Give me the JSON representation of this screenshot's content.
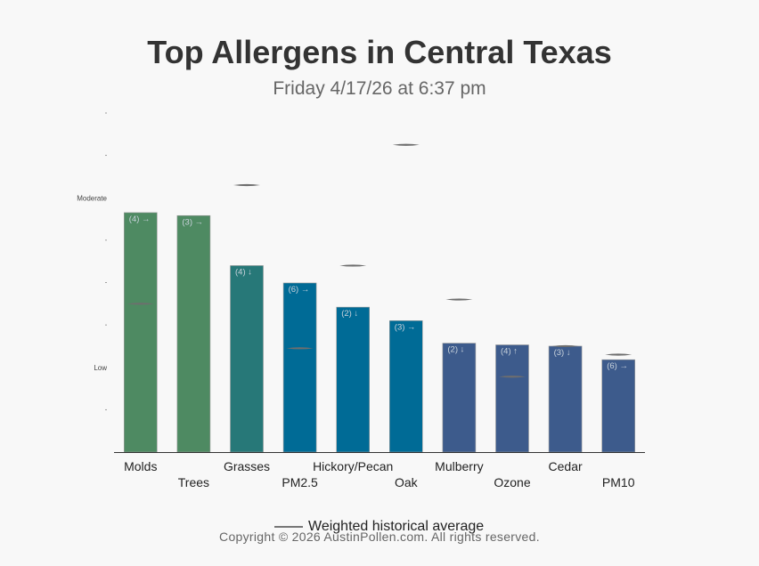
{
  "header": {
    "title": "Top Allergens in Central Texas",
    "subtitle": "Friday 4/17/26 at 6:37 pm"
  },
  "legend": {
    "label": "Weighted historical average"
  },
  "footer": {
    "copyright": "Copyright © 2026 AustinPollen.com.  All rights reserved."
  },
  "chart_data": {
    "type": "bar",
    "categories": [
      "Molds",
      "Trees",
      "Grasses",
      "PM2.5",
      "Hickory/Pecan",
      "Oak",
      "Mulberry",
      "Ozone",
      "Cedar",
      "PM10"
    ],
    "values": [
      5.65,
      5.58,
      4.4,
      3.99,
      3.42,
      3.1,
      2.57,
      2.53,
      2.5,
      2.18
    ],
    "historical_average": [
      3.5,
      null,
      6.3,
      2.45,
      4.4,
      7.25,
      3.6,
      1.78,
      2.5,
      2.3
    ],
    "annotations": [
      "(4) →",
      "(3) →",
      "(4) ↓",
      "(6) →",
      "(2) ↓",
      "(3) →",
      "(2) ↓",
      "(4) ↑",
      "(3) ↓",
      "(6) →"
    ],
    "colors": [
      "#4e8a62",
      "#4e8a62",
      "#277878",
      "#006b96",
      "#006b96",
      "#006b96",
      "#3d5b8c",
      "#3d5b8c",
      "#3d5b8c",
      "#3d5b8c"
    ],
    "ytick_labels": {
      "2": "Low",
      "6": "Moderate"
    },
    "ylim": [
      0,
      8
    ],
    "xlabel": "",
    "ylabel": ""
  }
}
